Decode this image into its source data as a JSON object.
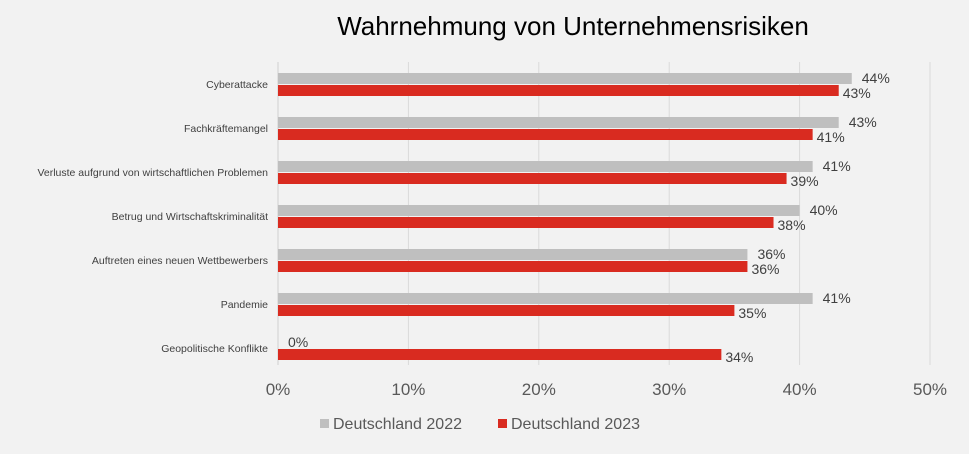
{
  "chart_data": {
    "type": "bar",
    "orientation": "horizontal",
    "title": "Wahrnehmung von Unternehmensrisiken",
    "categories": [
      "Cyberattacke",
      "Fachkräftemangel",
      "Verluste aufgrund von wirtschaftlichen Problemen",
      "Betrug und Wirtschaftskriminalität",
      "Auftreten eines neuen Wettbewerbers",
      "Pandemie",
      "Geopolitische Konflikte"
    ],
    "series": [
      {
        "name": "Deutschland 2022",
        "color": "#bfbfbf",
        "values": [
          44,
          43,
          41,
          40,
          36,
          41,
          0
        ]
      },
      {
        "name": "Deutschland 2023",
        "color": "#d92b20",
        "values": [
          43,
          41,
          39,
          38,
          36,
          35,
          34
        ]
      }
    ],
    "xlim": [
      0,
      50
    ],
    "xticks": [
      "0%",
      "10%",
      "20%",
      "30%",
      "40%",
      "50%"
    ],
    "grid": true,
    "legend": "bottom",
    "value_suffix": "%"
  }
}
